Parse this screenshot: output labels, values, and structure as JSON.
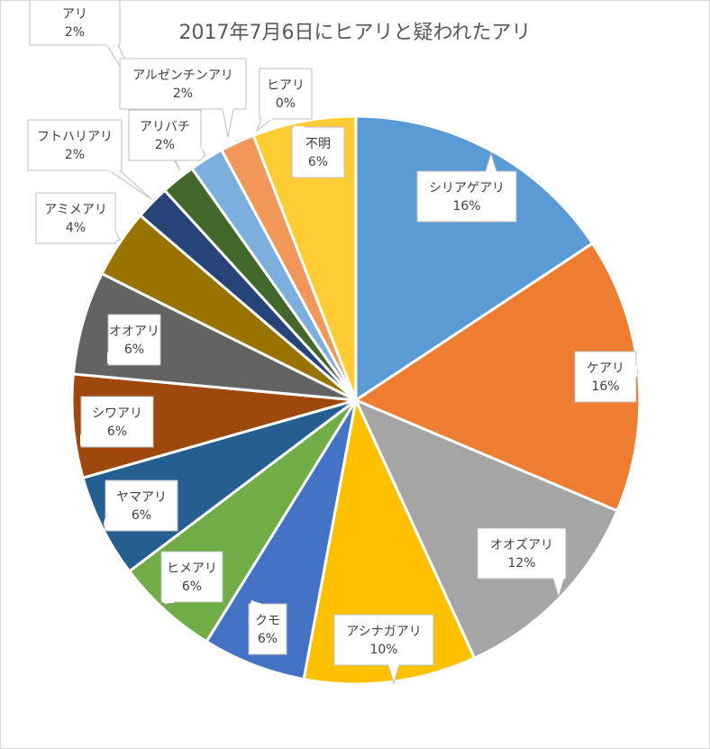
{
  "chart_data": {
    "type": "pie",
    "title": "2017年7月6日にヒアリと疑われたアリ",
    "unit": "%",
    "slices": [
      {
        "name": "シリアゲアリ",
        "value": 16,
        "label": "16%",
        "color": "#5b9bd5"
      },
      {
        "name": "ケアリ",
        "value": 16,
        "label": "16%",
        "color": "#ed7d31"
      },
      {
        "name": "オオズアリ",
        "value": 12,
        "label": "12%",
        "color": "#a5a5a5"
      },
      {
        "name": "アシナガアリ",
        "value": 10,
        "label": "10%",
        "color": "#ffc000"
      },
      {
        "name": "クモ",
        "value": 6,
        "label": "6%",
        "color": "#4472c4"
      },
      {
        "name": "ヒメアリ",
        "value": 6,
        "label": "6%",
        "color": "#70ad47"
      },
      {
        "name": "ヤマアリ",
        "value": 6,
        "label": "6%",
        "color": "#255e91"
      },
      {
        "name": "シワアリ",
        "value": 6,
        "label": "6%",
        "color": "#9e480e"
      },
      {
        "name": "オオアリ",
        "value": 6,
        "label": "6%",
        "color": "#636363"
      },
      {
        "name": "アミメアリ",
        "value": 4,
        "label": "4%",
        "color": "#997300"
      },
      {
        "name": "フトハリアリ",
        "value": 2,
        "label": "2%",
        "color": "#264478"
      },
      {
        "name": "アリ",
        "value": 2,
        "label": "2%",
        "color": "#43682b"
      },
      {
        "name": "アリバチ",
        "value": 2,
        "label": "2%",
        "color": "#7cafdd"
      },
      {
        "name": "アルゼンチンアリ",
        "value": 2,
        "label": "2%",
        "color": "#f1975a"
      },
      {
        "name": "ヒアリ",
        "value": 0,
        "label": "0%",
        "color": "#b7b7b7"
      },
      {
        "name": "不明",
        "value": 6,
        "label": "6%",
        "color": "#ffcd33"
      }
    ]
  }
}
